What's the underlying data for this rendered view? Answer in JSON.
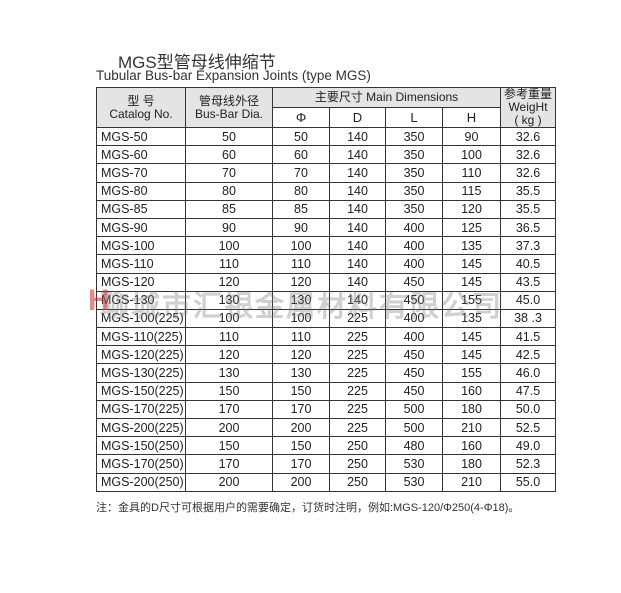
{
  "title": "MGS型管母线伸缩节",
  "subtitle": "Tubular Bus-bar Expansion Joints (type MGS)",
  "headers": {
    "catalog_cn": "型 号",
    "catalog_en": "Catalog No.",
    "dia_cn": "管母线外径",
    "dia_en": "Bus-Bar Dia.",
    "main_dim": "主要尺寸 Main Dimensions",
    "phi": "Φ",
    "d": "D",
    "l": "L",
    "h": "H",
    "weight_cn": "参考重量",
    "weight_en": "WeigHt",
    "weight_unit": "( kg )"
  },
  "rows": [
    [
      "MGS-50",
      "50",
      "50",
      "140",
      "350",
      "90",
      "32.6"
    ],
    [
      "MGS-60",
      "60",
      "60",
      "140",
      "350",
      "100",
      "32.6"
    ],
    [
      "MGS-70",
      "70",
      "70",
      "140",
      "350",
      "110",
      "32.6"
    ],
    [
      "MGS-80",
      "80",
      "80",
      "140",
      "350",
      "115",
      "35.5"
    ],
    [
      "MGS-85",
      "85",
      "85",
      "140",
      "350",
      "120",
      "35.5"
    ],
    [
      "MGS-90",
      "90",
      "90",
      "140",
      "400",
      "125",
      "36.5"
    ],
    [
      "MGS-100",
      "100",
      "100",
      "140",
      "400",
      "135",
      "37.3"
    ],
    [
      "MGS-110",
      "110",
      "110",
      "140",
      "400",
      "145",
      "40.5"
    ],
    [
      "MGS-120",
      "120",
      "120",
      "140",
      "450",
      "145",
      "43.5"
    ],
    [
      "MGS-130",
      "130",
      "130",
      "140",
      "450",
      "155",
      "45.0"
    ],
    [
      "MGS-100(225)",
      "100",
      "100",
      "225",
      "400",
      "135",
      "38 .3"
    ],
    [
      "MGS-110(225)",
      "110",
      "110",
      "225",
      "400",
      "145",
      "41.5"
    ],
    [
      "MGS-120(225)",
      "120",
      "120",
      "225",
      "450",
      "145",
      "42.5"
    ],
    [
      "MGS-130(225)",
      "130",
      "130",
      "225",
      "450",
      "155",
      "46.0"
    ],
    [
      "MGS-150(225)",
      "150",
      "150",
      "225",
      "450",
      "160",
      "47.5"
    ],
    [
      "MGS-170(225)",
      "170",
      "170",
      "225",
      "500",
      "180",
      "50.0"
    ],
    [
      "MGS-200(225)",
      "200",
      "200",
      "225",
      "500",
      "210",
      "52.5"
    ],
    [
      "MGS-150(250)",
      "150",
      "150",
      "250",
      "480",
      "160",
      "49.0"
    ],
    [
      "MGS-170(250)",
      "170",
      "170",
      "250",
      "530",
      "180",
      "52.3"
    ],
    [
      "MGS-200(250)",
      "200",
      "200",
      "250",
      "530",
      "210",
      "55.0"
    ]
  ],
  "note": "注：金具的D尺寸可根据用户的需要确定，订货时注明，例如:MGS-120/Φ250(4-Φ18)。",
  "watermark": "聊城市汇银金属材料有限公司"
}
